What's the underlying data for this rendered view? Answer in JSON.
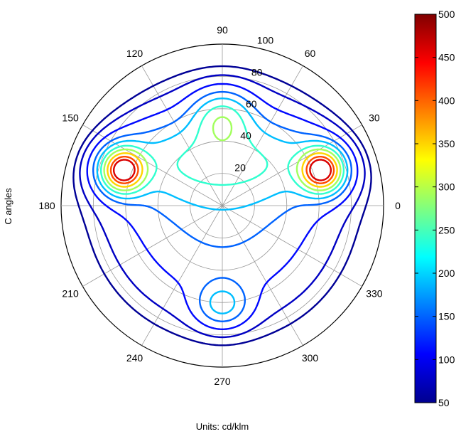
{
  "chart_data": {
    "type": "polar-contour",
    "title": "",
    "ylabel": "C angles",
    "xlabel": "Units: cd/klm",
    "angle_ticks": [
      "0",
      "30",
      "60",
      "90",
      "120",
      "150",
      "180",
      "210",
      "240",
      "270",
      "300",
      "330"
    ],
    "radial_ticks": [
      "20",
      "40",
      "60",
      "80",
      "100"
    ],
    "rlim": [
      0,
      100
    ],
    "grid": true,
    "colormap": "jet",
    "colorbar": {
      "range": [
        50,
        500
      ],
      "ticks": [
        "50",
        "100",
        "150",
        "200",
        "250",
        "300",
        "350",
        "400",
        "450",
        "500"
      ],
      "placement": "right"
    },
    "contour_levels": [
      60,
      80,
      110,
      150,
      190,
      240,
      290,
      350,
      410,
      460
    ],
    "peaks": [
      {
        "c_angle": 20,
        "gamma": 65,
        "value": 500
      },
      {
        "c_angle": 160,
        "gamma": 65,
        "value": 500
      }
    ]
  }
}
